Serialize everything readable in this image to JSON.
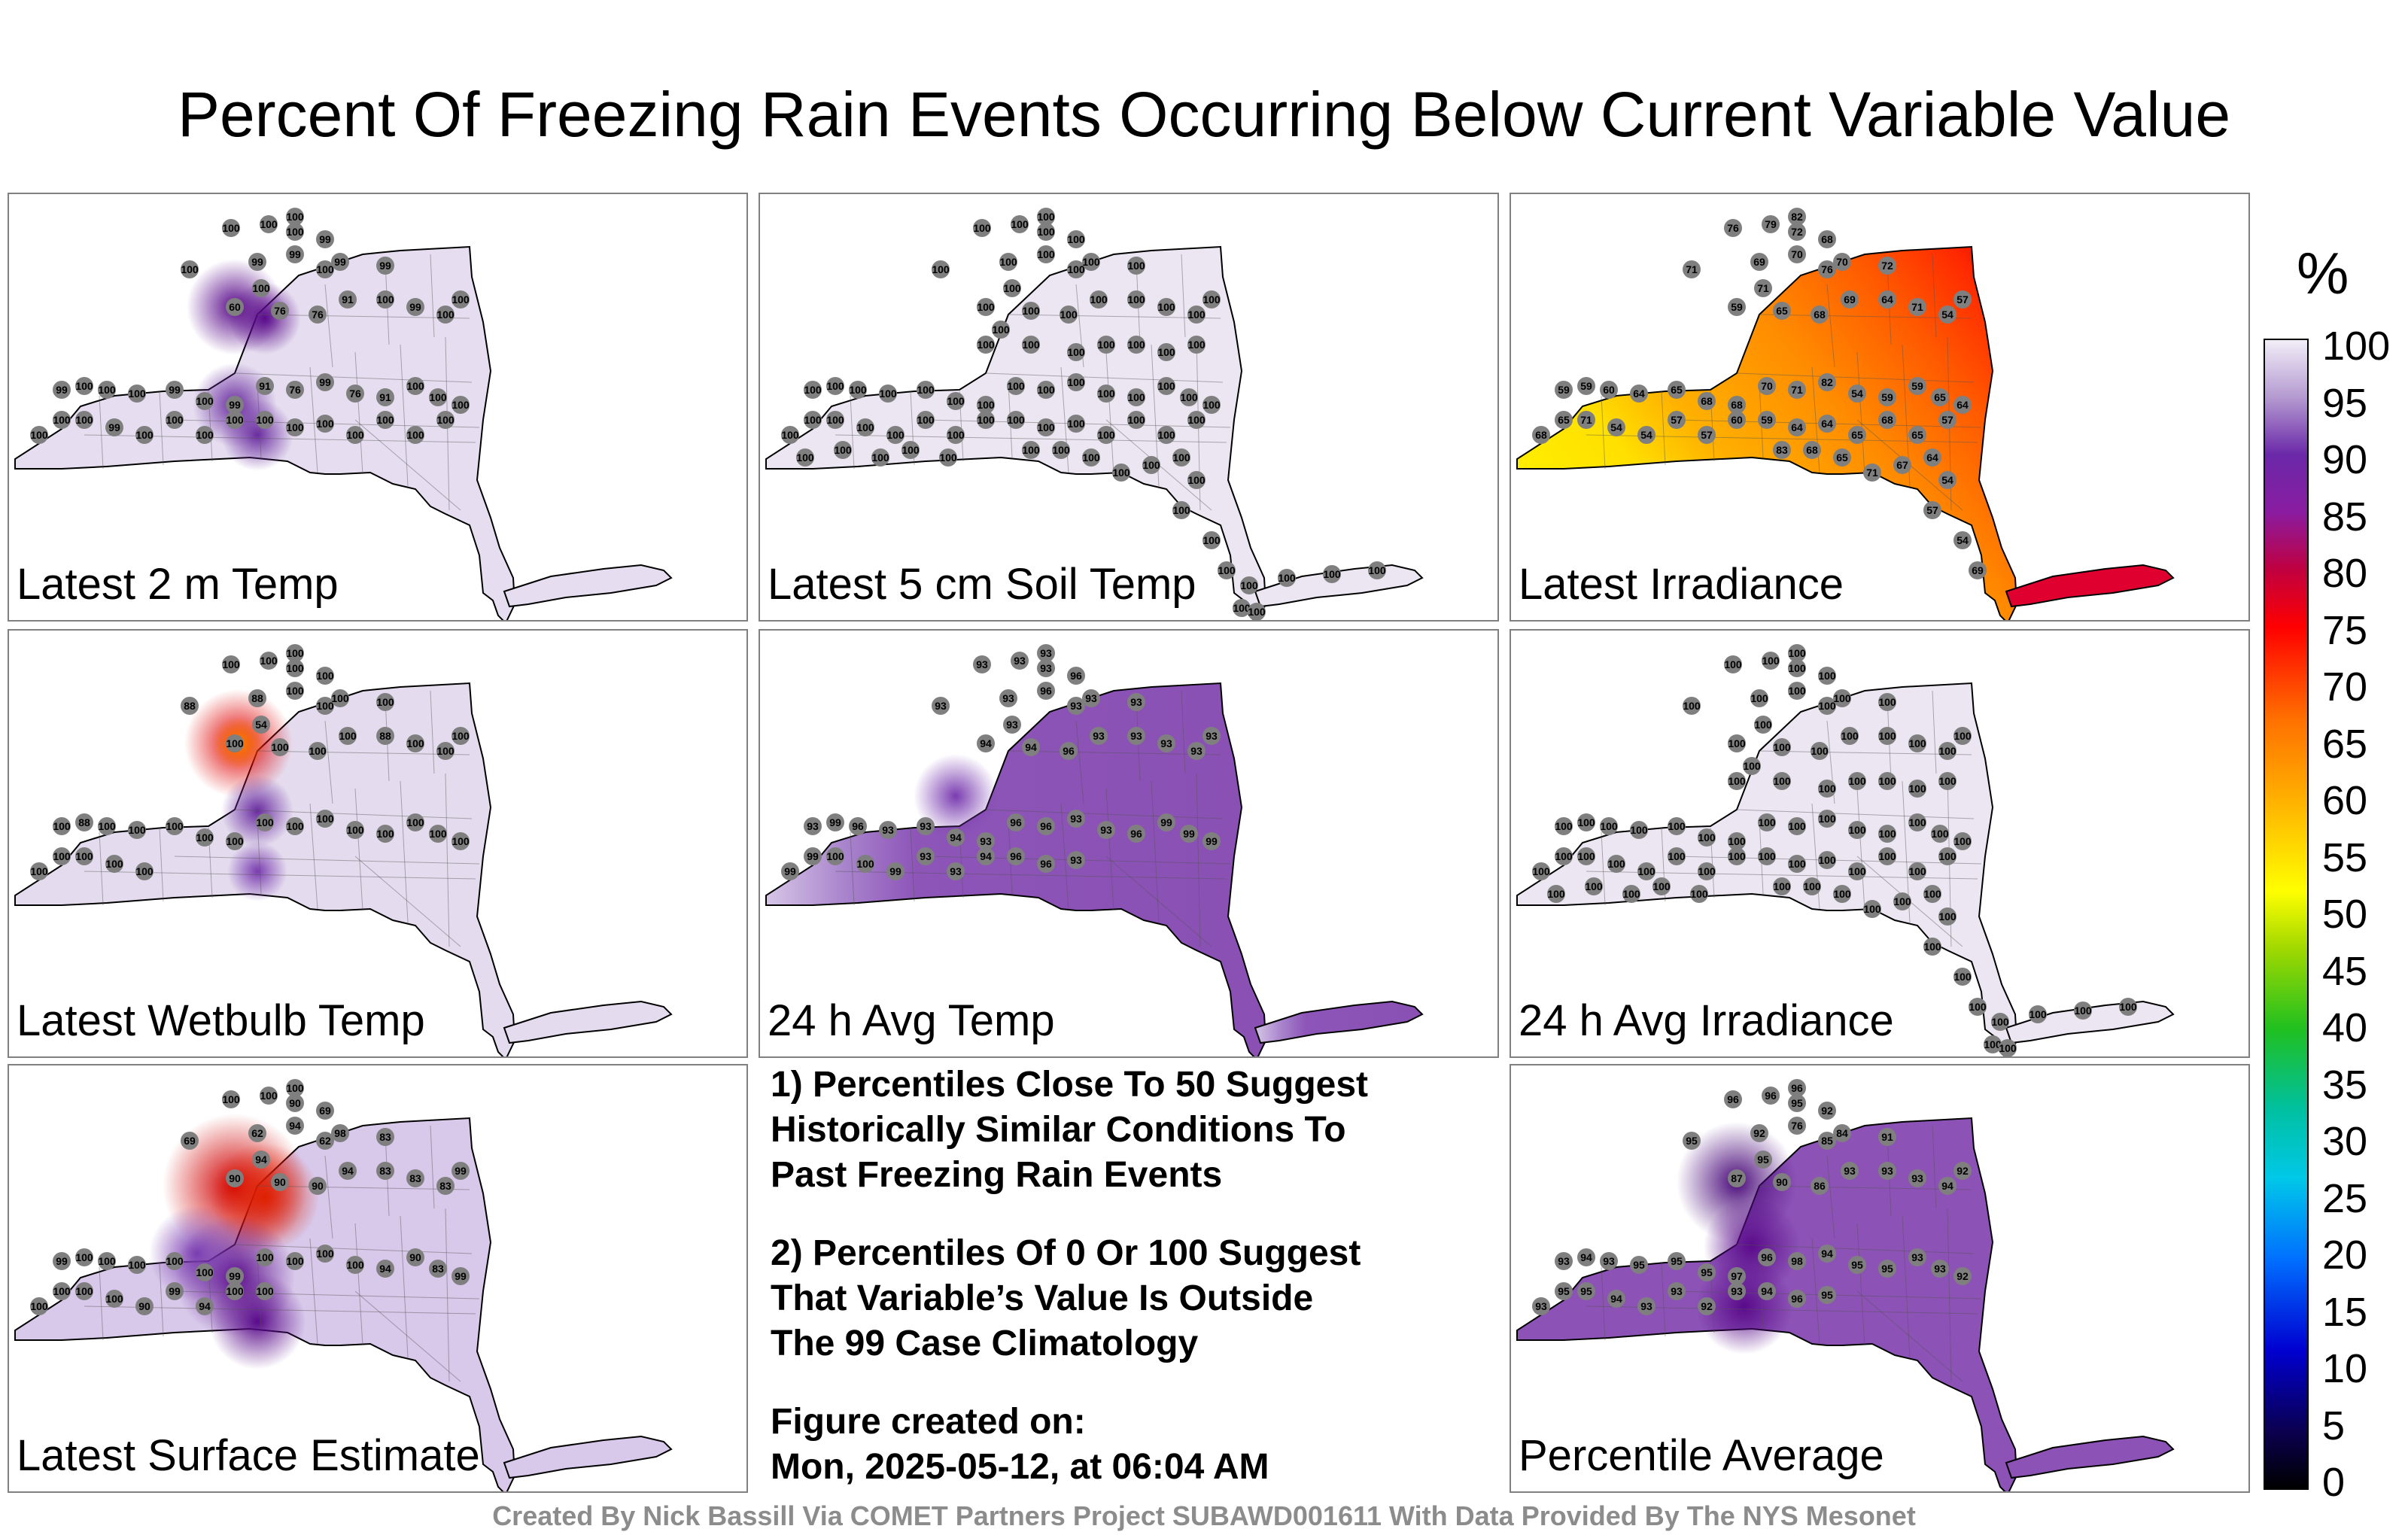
{
  "title": "Percent Of Freezing Rain Events Occurring Below Current Variable Value",
  "panels": [
    {
      "id": "2m-temp",
      "label": "Latest 2 m Temp",
      "scheme": "high"
    },
    {
      "id": "5cm-soil",
      "label": "Latest 5 cm Soil Temp",
      "scheme": "all100"
    },
    {
      "id": "irradiance",
      "label": "Latest Irradiance",
      "scheme": "irr"
    },
    {
      "id": "wetbulb",
      "label": "Latest Wetbulb Temp",
      "scheme": "wet"
    },
    {
      "id": "24h-temp",
      "label": "24 h Avg Temp",
      "scheme": "p93"
    },
    {
      "id": "24h-irr",
      "label": "24 h Avg Irradiance",
      "scheme": "all100"
    },
    {
      "id": "surface",
      "label": "Latest Surface Estimate",
      "scheme": "surf"
    },
    {
      "id": "average",
      "label": "Percentile Average",
      "scheme": "avg"
    }
  ],
  "notes": {
    "note1": "1) Percentiles Close To 50 Suggest\nHistorically Similar Conditions To\nPast Freezing Rain Events",
    "note2": "2) Percentiles Of 0 Or 100 Suggest\nThat Variable’s Value Is Outside\nThe 99 Case Climatology",
    "created_label": "Figure created on:",
    "created_value": "Mon, 2025-05-12, at 06:04 AM"
  },
  "colorbar": {
    "unit": "%",
    "ticks": [
      "100",
      "95",
      "90",
      "85",
      "80",
      "75",
      "70",
      "65",
      "60",
      "55",
      "50",
      "45",
      "40",
      "35",
      "30",
      "25",
      "20",
      "15",
      "10",
      "5",
      "0"
    ]
  },
  "credit": "Created By Nick Bassill Via COMET Partners Project SUBAWD001611 With Data Provided By The NYS Mesonet",
  "station_values": {
    "2m-temp": [
      "100",
      "100",
      "100",
      "100",
      "100",
      "100",
      "99",
      "99",
      "99",
      "100",
      "99",
      "99",
      "60",
      "76",
      "76",
      "91",
      "100",
      "99",
      "100",
      "100",
      "99",
      "100",
      "100",
      "100",
      "99",
      "100",
      "99",
      "91",
      "76",
      "99",
      "76",
      "91",
      "100",
      "100",
      "100",
      "100",
      "100",
      "100",
      "99",
      "100",
      "100",
      "100",
      "100",
      "100",
      "100",
      "100",
      "100",
      "100",
      "100",
      "100"
    ],
    "irradiance": [
      "76",
      "79",
      "82",
      "72",
      "71",
      "71",
      "69",
      "70",
      "68",
      "76",
      "70",
      "72",
      "59",
      "65",
      "68",
      "69",
      "64",
      "71",
      "54",
      "57",
      "59",
      "59",
      "60",
      "64",
      "65",
      "68",
      "68",
      "70",
      "71",
      "82",
      "54",
      "59",
      "59",
      "65",
      "64",
      "68",
      "65",
      "71",
      "54",
      "54",
      "57",
      "57",
      "60",
      "59",
      "64",
      "64",
      "65",
      "68",
      "65",
      "57",
      "64",
      "67",
      "71",
      "65",
      "68",
      "83",
      "54",
      "57",
      "54",
      "69"
    ],
    "wetbulb": [
      "100",
      "100",
      "100",
      "100",
      "54",
      "88",
      "88",
      "100",
      "100",
      "100",
      "100",
      "100",
      "100",
      "100",
      "100",
      "100",
      "88",
      "100",
      "100",
      "100",
      "100",
      "88",
      "100",
      "100",
      "100",
      "100",
      "100",
      "100",
      "100",
      "100",
      "100",
      "100",
      "100",
      "100",
      "100",
      "100",
      "100",
      "100",
      "100",
      "100"
    ],
    "24h-temp": [
      "93",
      "93",
      "93",
      "93",
      "93",
      "93",
      "93",
      "96",
      "96",
      "93",
      "93",
      "93",
      "94",
      "94",
      "96",
      "93",
      "93",
      "93",
      "93",
      "93",
      "93",
      "99",
      "96",
      "93",
      "93",
      "94",
      "93",
      "96",
      "96",
      "93",
      "93",
      "96",
      "99",
      "99",
      "99",
      "99",
      "99",
      "100",
      "100",
      "99",
      "93",
      "93",
      "94",
      "96",
      "96",
      "93"
    ],
    "surface": [
      "100",
      "100",
      "100",
      "90",
      "94",
      "69",
      "62",
      "94",
      "69",
      "62",
      "98",
      "83",
      "90",
      "90",
      "90",
      "94",
      "83",
      "83",
      "83",
      "99",
      "99",
      "100",
      "100",
      "100",
      "100",
      "100",
      "99",
      "100",
      "100",
      "100",
      "100",
      "94",
      "90",
      "83",
      "99",
      "100",
      "100",
      "100",
      "100",
      "90",
      "99",
      "94",
      "100",
      "100"
    ],
    "average": [
      "96",
      "96",
      "96",
      "95",
      "95",
      "95",
      "92",
      "76",
      "92",
      "85",
      "84",
      "91",
      "87",
      "90",
      "86",
      "93",
      "93",
      "93",
      "94",
      "92",
      "93",
      "94",
      "93",
      "95",
      "95",
      "95",
      "97",
      "96",
      "98",
      "94",
      "95",
      "95",
      "93",
      "93",
      "92",
      "93",
      "95",
      "95",
      "94",
      "93",
      "93",
      "92",
      "93",
      "94",
      "96",
      "95"
    ]
  }
}
